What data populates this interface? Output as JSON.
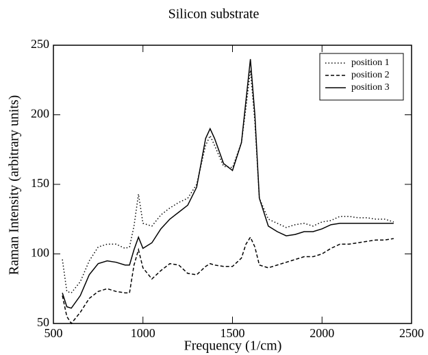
{
  "chart_data": {
    "type": "line",
    "title": "Silicon substrate",
    "x_label": "Frequency (1/cm)",
    "y_label": "Raman Intensity (arbitrary units)",
    "x": [
      550,
      575,
      600,
      650,
      700,
      750,
      800,
      850,
      900,
      925,
      950,
      975,
      1000,
      1050,
      1100,
      1150,
      1200,
      1250,
      1300,
      1350,
      1375,
      1400,
      1450,
      1500,
      1550,
      1575,
      1600,
      1625,
      1650,
      1700,
      1750,
      1800,
      1850,
      1900,
      1950,
      2000,
      2050,
      2100,
      2150,
      2200,
      2250,
      2300,
      2350,
      2400
    ],
    "series": [
      {
        "name": "position 1",
        "color": "#000000",
        "dash": "dotted",
        "values": [
          96,
          73,
          72,
          80,
          95,
          105,
          107,
          107,
          104,
          105,
          120,
          143,
          122,
          120,
          128,
          133,
          137,
          140,
          150,
          178,
          185,
          178,
          163,
          162,
          180,
          205,
          232,
          195,
          140,
          125,
          122,
          119,
          121,
          122,
          120,
          123,
          124,
          127,
          127,
          126,
          126,
          125,
          125,
          123
        ]
      },
      {
        "name": "position 2",
        "color": "#000000",
        "dash": "dashed",
        "values": [
          70,
          55,
          50,
          58,
          68,
          73,
          75,
          73,
          72,
          72,
          92,
          103,
          90,
          82,
          88,
          93,
          92,
          86,
          85,
          91,
          93,
          92,
          91,
          91,
          97,
          107,
          112,
          105,
          92,
          90,
          92,
          94,
          96,
          98,
          98,
          100,
          104,
          107,
          107,
          108,
          109,
          110,
          110,
          111
        ]
      },
      {
        "name": "position 3",
        "color": "#000000",
        "dash": "solid",
        "values": [
          72,
          62,
          61,
          70,
          85,
          93,
          95,
          94,
          92,
          92,
          103,
          112,
          104,
          108,
          118,
          125,
          130,
          135,
          148,
          183,
          190,
          183,
          165,
          160,
          180,
          210,
          240,
          200,
          140,
          120,
          116,
          113,
          114,
          116,
          116,
          118,
          121,
          122,
          122,
          122,
          122,
          122,
          122,
          122
        ]
      }
    ],
    "xlim": [
      500,
      2500
    ],
    "xticks": [
      500,
      1000,
      1500,
      2000,
      2500
    ],
    "ylim": [
      50,
      250
    ],
    "yticks": [
      50,
      100,
      150,
      200,
      250
    ],
    "grid": false,
    "legend": "upper right"
  }
}
